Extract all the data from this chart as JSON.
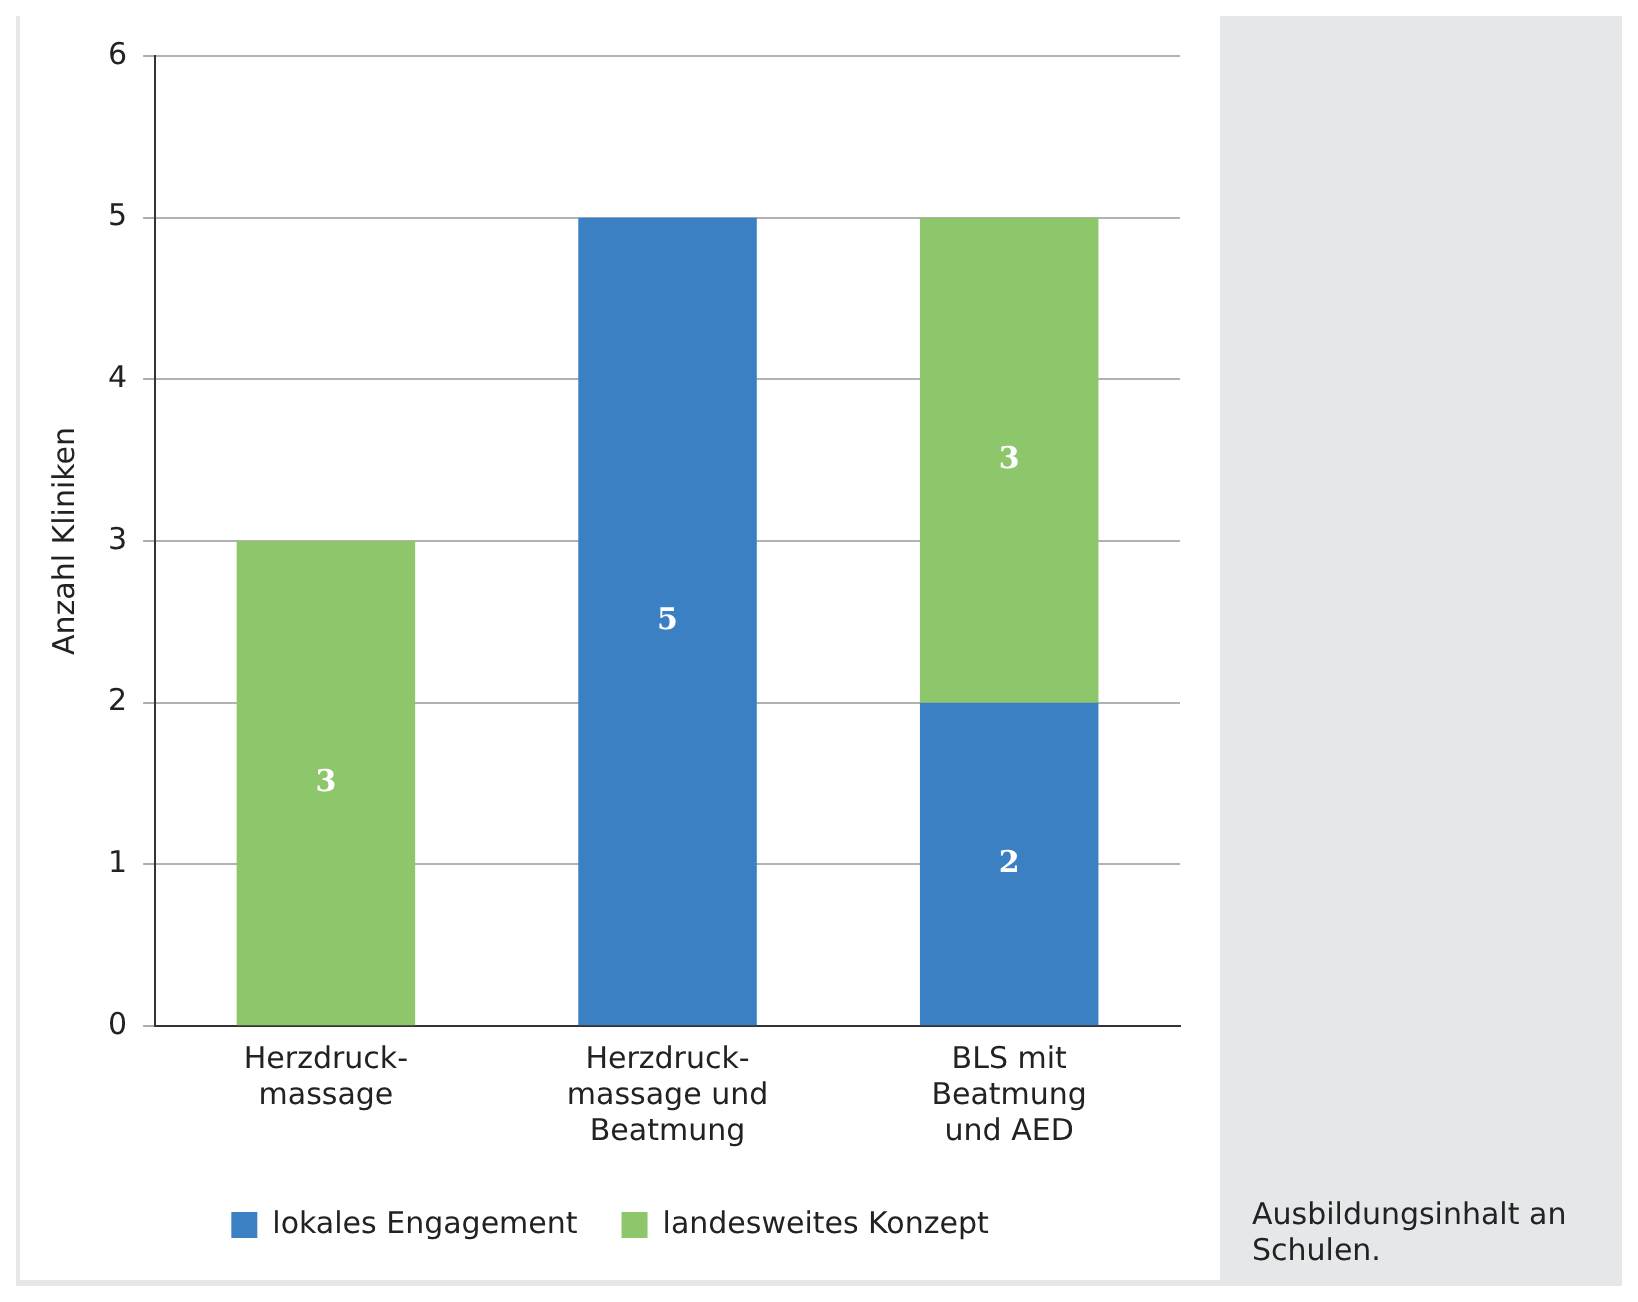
{
  "chart_data": {
    "type": "bar",
    "stacked": true,
    "ylabel": "Anzahl Kliniken",
    "categories": [
      "Herzdruck-massage",
      "Herzdruck-massage und Beatmung",
      "BLS mit Beatmung und AED"
    ],
    "series": [
      {
        "name": "lokales Engagement",
        "color": "#3a80c3",
        "values": [
          null,
          5,
          2
        ]
      },
      {
        "name": "landesweites Konzept",
        "color": "#8dc66b",
        "values": [
          3,
          null,
          3
        ]
      }
    ],
    "ylim": [
      0,
      6
    ],
    "yticks": [
      0,
      1,
      2,
      3,
      4,
      5,
      6
    ],
    "grid": "y",
    "legend": "bottom",
    "data_labels": true,
    "annotations": [
      "Ausbildungsinhalt an Schulen."
    ]
  }
}
